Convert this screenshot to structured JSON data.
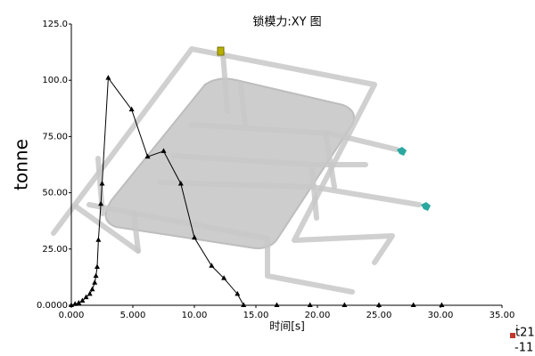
{
  "chart_data": {
    "type": "line",
    "title": "锁模力:XY 图",
    "x_label": "时间[s]",
    "y_label": "tonne",
    "x": [
      0,
      0.3,
      0.6,
      0.9,
      1.2,
      1.5,
      1.7,
      1.9,
      2.0,
      2.1,
      2.2,
      2.4,
      2.5,
      3.0,
      4.9,
      6.2,
      7.5,
      8.9,
      10.0,
      11.4,
      12.4,
      13.5,
      14.0,
      16.7,
      19.4,
      22.2,
      25.0,
      27.8,
      30.1
    ],
    "series": [
      {
        "name": "锁模力",
        "color": "#000000",
        "values": [
          0,
          0.5,
          1,
          2,
          3.5,
          5,
          7,
          10,
          13,
          17,
          29,
          45,
          54,
          101,
          87,
          66,
          68.5,
          54,
          30,
          17.5,
          12,
          5,
          0,
          0,
          0,
          0,
          0,
          0,
          0
        ]
      }
    ],
    "xlim": [
      0,
      35
    ],
    "xticks": [
      {
        "value": 0,
        "label": "0.000"
      },
      {
        "value": 5,
        "label": "5.000"
      },
      {
        "value": 10,
        "label": "10.00"
      },
      {
        "value": 15,
        "label": "15.00"
      },
      {
        "value": 20,
        "label": "20.00"
      },
      {
        "value": 25,
        "label": "25.00"
      },
      {
        "value": 30,
        "label": "30.00"
      },
      {
        "value": 35,
        "label": "35.00"
      }
    ],
    "ylim": [
      0,
      125
    ],
    "yticks": [
      {
        "value": 0,
        "label": "0.0000"
      },
      {
        "value": 25,
        "label": "25.00"
      },
      {
        "value": 50,
        "label": "50.00"
      },
      {
        "value": 75,
        "label": "75.00"
      },
      {
        "value": 100,
        "label": "100.0"
      },
      {
        "value": 125,
        "label": "125.0"
      }
    ],
    "grid": false,
    "annotations": [
      "ṫ21",
      "-11"
    ]
  }
}
